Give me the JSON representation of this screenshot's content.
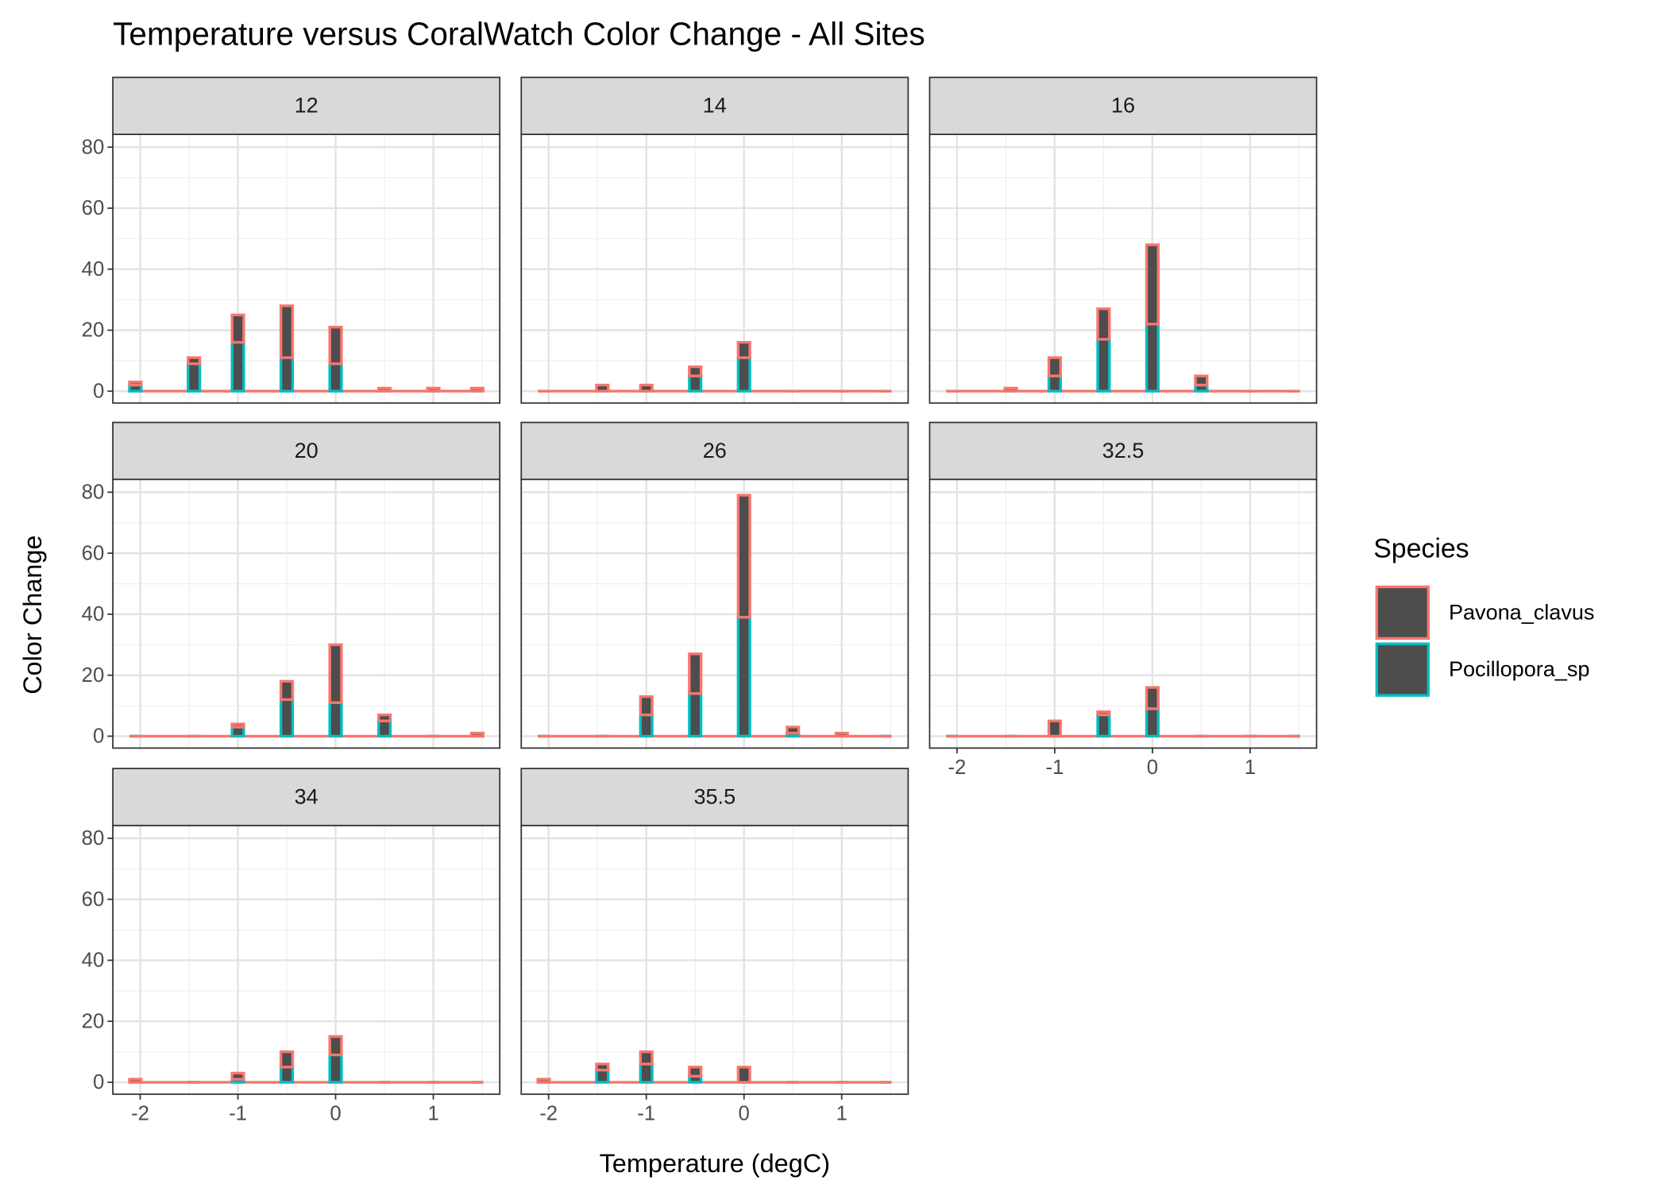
{
  "chart_data": {
    "type": "bar",
    "title": "Temperature versus CoralWatch Color Change - All Sites",
    "x_label": "Temperature (degC)",
    "y_label": "Color Change",
    "legend_title": "Species",
    "legend_position": "right",
    "grid": true,
    "bar_fill": "#4d4d4d",
    "series": [
      {
        "name": "Pavona_clavus",
        "color": "#F8766D"
      },
      {
        "name": "Pocillopora_sp",
        "color": "#00BFC4"
      }
    ],
    "x": [
      -2.05,
      -1.45,
      -1,
      -0.5,
      0,
      0.5,
      1,
      1.45
    ],
    "xlim": [
      -2.28,
      1.68
    ],
    "xticks": [
      -2,
      -1,
      0,
      1
    ],
    "ylim": [
      -3.9,
      84.2
    ],
    "yticks": [
      0,
      20,
      40,
      60,
      80
    ],
    "facets": [
      {
        "label": "12",
        "series": [
          {
            "values": [
              1,
              2,
              9,
              17,
              12,
              1,
              1,
              1
            ]
          },
          {
            "values": [
              2,
              9,
              16,
              11,
              9,
              0,
              0,
              0
            ]
          }
        ]
      },
      {
        "label": "14",
        "series": [
          {
            "values": [
              0,
              2,
              2,
              3,
              5,
              0,
              0,
              0
            ]
          },
          {
            "values": [
              0,
              0,
              0,
              5,
              11,
              0,
              0,
              0
            ]
          }
        ]
      },
      {
        "label": "16",
        "series": [
          {
            "values": [
              0,
              1,
              6,
              10,
              26,
              3,
              0,
              0
            ]
          },
          {
            "values": [
              0,
              0,
              5,
              17,
              22,
              2,
              0,
              0
            ]
          }
        ]
      },
      {
        "label": "20",
        "series": [
          {
            "values": [
              0,
              0,
              1,
              6,
              19,
              2,
              0,
              1
            ]
          },
          {
            "values": [
              0,
              0,
              3,
              12,
              11,
              5,
              0,
              0
            ]
          }
        ]
      },
      {
        "label": "26",
        "series": [
          {
            "values": [
              0,
              0,
              6,
              13,
              40,
              2,
              1,
              0
            ]
          },
          {
            "values": [
              0,
              0,
              7,
              14,
              39,
              1,
              0,
              0
            ]
          }
        ]
      },
      {
        "label": "32.5",
        "series": [
          {
            "values": [
              0,
              0,
              5,
              1,
              7,
              0,
              0,
              0
            ]
          },
          {
            "values": [
              0,
              0,
              0,
              7,
              9,
              0,
              0,
              0
            ]
          }
        ]
      },
      {
        "label": "34",
        "series": [
          {
            "values": [
              1,
              0,
              2,
              5,
              6,
              0,
              0,
              0
            ]
          },
          {
            "values": [
              0,
              0,
              1,
              5,
              9,
              0,
              0,
              0
            ]
          }
        ]
      },
      {
        "label": "35.5",
        "series": [
          {
            "values": [
              1,
              2,
              4,
              3,
              5,
              0,
              0,
              0
            ]
          },
          {
            "values": [
              0,
              4,
              6,
              2,
              0,
              0,
              0,
              0
            ]
          }
        ]
      }
    ]
  }
}
